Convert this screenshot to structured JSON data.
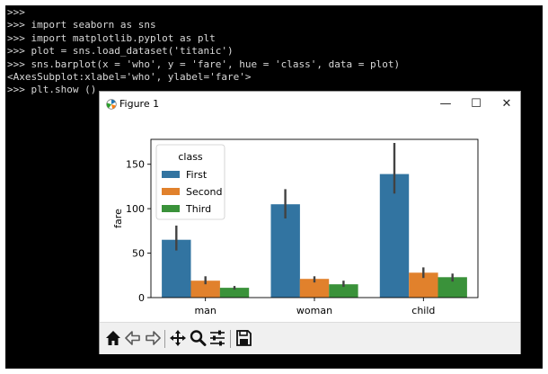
{
  "console": {
    "lines": [
      ">>>",
      ">>> import seaborn as sns",
      ">>> import matplotlib.pyplot as plt",
      ">>> plot = sns.load_dataset('titanic')",
      ">>> sns.barplot(x = 'who', y = 'fare', hue = 'class', data = plot)",
      "<AxesSubplot:xlabel='who', ylabel='fare'>",
      ">>> plt.show ()"
    ]
  },
  "window": {
    "title": "Figure 1",
    "minimize": "—",
    "maximize": "☐",
    "close": "✕"
  },
  "toolbar": {
    "icons": [
      "home-icon",
      "back-arrow-icon",
      "forward-arrow-icon",
      "pan-icon",
      "zoom-icon",
      "configure-subplots-icon",
      "save-icon"
    ]
  },
  "colors": {
    "terminal_bg": "#000000",
    "terminal_text": "#d8d8d8",
    "first": "#3274a1",
    "second": "#e1812c",
    "third": "#3a923a",
    "errbar": "#424242"
  },
  "chart_data": {
    "type": "bar",
    "categories": [
      "man",
      "woman",
      "child"
    ],
    "series": [
      {
        "name": "First",
        "values": [
          65,
          105,
          139
        ],
        "ci": [
          [
            53,
            81
          ],
          [
            89,
            122
          ],
          [
            117,
            174
          ]
        ]
      },
      {
        "name": "Second",
        "values": [
          19,
          21,
          28
        ],
        "ci": [
          [
            15,
            24
          ],
          [
            17,
            24
          ],
          [
            22,
            34
          ]
        ]
      },
      {
        "name": "Third",
        "values": [
          11,
          15,
          23
        ],
        "ci": [
          [
            9,
            13
          ],
          [
            12,
            19
          ],
          [
            18,
            27
          ]
        ]
      }
    ],
    "title": "",
    "xlabel": "",
    "ylabel": "fare",
    "ylim": [
      0,
      178
    ],
    "yticks": [
      0,
      50,
      100,
      150
    ],
    "legend_title": "class",
    "legend_loc": "upper-left",
    "grid": false
  }
}
